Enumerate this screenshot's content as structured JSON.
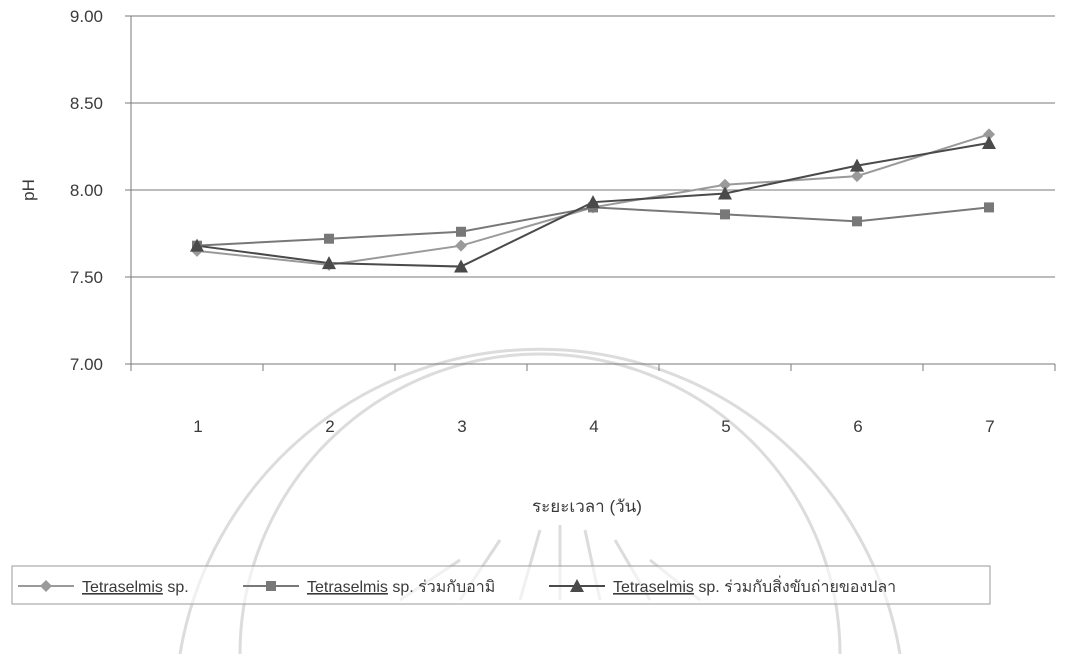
{
  "chart_data": {
    "type": "line",
    "ylabel": "pH",
    "xlabel": "ระยะเวลา (วัน)",
    "categories": [
      "1",
      "2",
      "3",
      "4",
      "5",
      "6",
      "7"
    ],
    "y_ticks": [
      "7.00",
      "7.50",
      "8.00",
      "8.50",
      "9.00"
    ],
    "ylim": [
      7.0,
      9.0
    ],
    "grid": "horizontal",
    "legend_position": "bottom",
    "series": [
      {
        "name": "Tetraselmis sp.",
        "legend_genus": "Tetraselmis",
        "legend_rest": " sp.",
        "marker": "diamond",
        "color": "#9a9a9a",
        "values": [
          7.65,
          7.57,
          7.68,
          7.9,
          8.03,
          8.08,
          8.32
        ]
      },
      {
        "name": "Tetraselmis sp. ร่วมกับอามิ",
        "legend_genus": "Tetraselmis",
        "legend_rest": " sp. ร่วมกับอามิ",
        "marker": "square",
        "color": "#787878",
        "values": [
          7.68,
          7.72,
          7.76,
          7.9,
          7.86,
          7.82,
          7.9
        ]
      },
      {
        "name": "Tetraselmis sp. ร่วมกับสิ่งขับถ่ายของปลา",
        "legend_genus": "Tetraselmis",
        "legend_rest": " sp. ร่วมกับสิ่งขับถ่ายของปลา",
        "marker": "triangle",
        "color": "#4a4a4a",
        "values": [
          7.68,
          7.58,
          7.56,
          7.93,
          7.98,
          8.14,
          8.27
        ]
      }
    ]
  }
}
